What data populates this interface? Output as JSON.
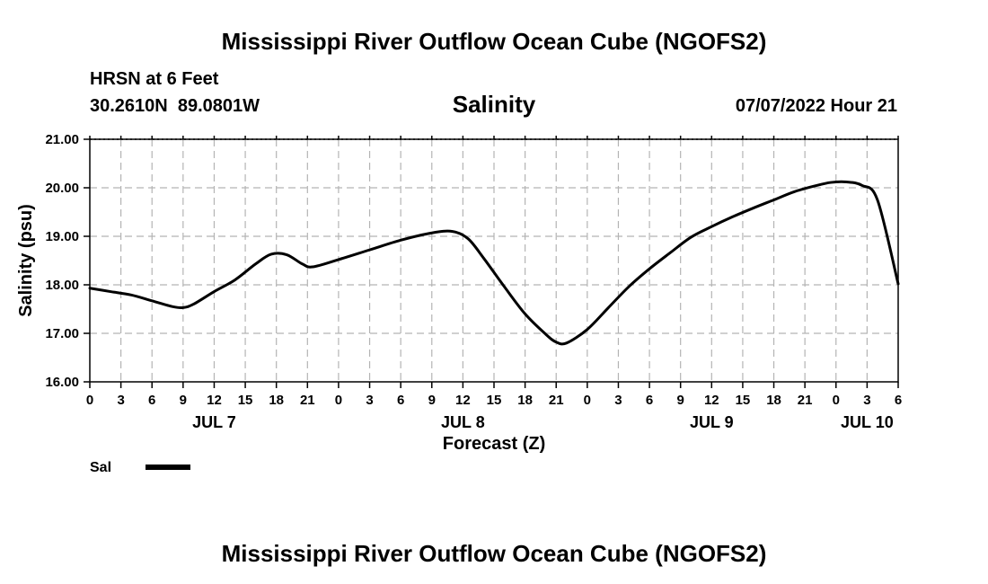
{
  "page": {
    "title": "Mississippi River Outflow Ocean Cube (NGOFS2)",
    "footer_title": "Mississippi River Outflow Ocean Cube (NGOFS2)"
  },
  "station": {
    "name": "HRSN at 6 Feet",
    "coords": "30.2610N  89.0801W",
    "timestamp": "07/07/2022 Hour 21"
  },
  "colors": {
    "line": "#000000",
    "grid": "#b4b4b4",
    "axis": "#000000",
    "background": "#ffffff"
  },
  "chart_data": {
    "type": "line",
    "title": "Salinity",
    "xlabel": "Forecast (Z)",
    "ylabel": "Salinity (psu)",
    "xlim": [
      0,
      78
    ],
    "ylim": [
      16,
      21
    ],
    "ytick_values": [
      16,
      17,
      18,
      19,
      20,
      21
    ],
    "ytick_labels": [
      "16.00",
      "17.00",
      "18.00",
      "19.00",
      "20.00",
      "21.00"
    ],
    "xtick_values": [
      0,
      3,
      6,
      9,
      12,
      15,
      18,
      21,
      24,
      27,
      30,
      33,
      36,
      39,
      42,
      45,
      48,
      51,
      54,
      57,
      60,
      63,
      66,
      69,
      72,
      75,
      78
    ],
    "xtick_labels": [
      "0",
      "3",
      "6",
      "9",
      "12",
      "15",
      "18",
      "21",
      "0",
      "3",
      "6",
      "9",
      "12",
      "15",
      "18",
      "21",
      "0",
      "3",
      "6",
      "9",
      "12",
      "15",
      "18",
      "21",
      "0",
      "3",
      "6"
    ],
    "day_labels": [
      {
        "label": "JUL 7",
        "x": 12
      },
      {
        "label": "JUL 8",
        "x": 36
      },
      {
        "label": "JUL 9",
        "x": 60
      },
      {
        "label": "JUL 10",
        "x": 75
      }
    ],
    "grid": true,
    "series": [
      {
        "name": "Sal",
        "x": [
          0,
          2,
          4,
          6,
          8,
          9,
          10,
          12,
          14,
          16,
          17.5,
          19,
          20.5,
          21.5,
          24,
          27,
          30,
          33,
          35,
          36.5,
          38,
          40,
          42,
          44,
          45,
          46,
          48,
          50,
          52,
          54,
          56,
          58,
          60,
          62,
          64,
          66,
          68,
          70,
          71.5,
          73,
          74.5,
          76,
          78
        ],
        "values": [
          17.93,
          17.86,
          17.79,
          17.67,
          17.55,
          17.53,
          17.6,
          17.86,
          18.1,
          18.43,
          18.63,
          18.62,
          18.43,
          18.37,
          18.52,
          18.72,
          18.92,
          19.07,
          19.1,
          18.95,
          18.55,
          17.96,
          17.4,
          16.98,
          16.82,
          16.8,
          17.08,
          17.52,
          17.96,
          18.33,
          18.66,
          18.98,
          19.2,
          19.4,
          19.58,
          19.75,
          19.92,
          20.04,
          20.11,
          20.12,
          20.05,
          19.75,
          18.02
        ]
      }
    ],
    "legend": {
      "position": "bottom-left",
      "label": "Sal"
    }
  }
}
